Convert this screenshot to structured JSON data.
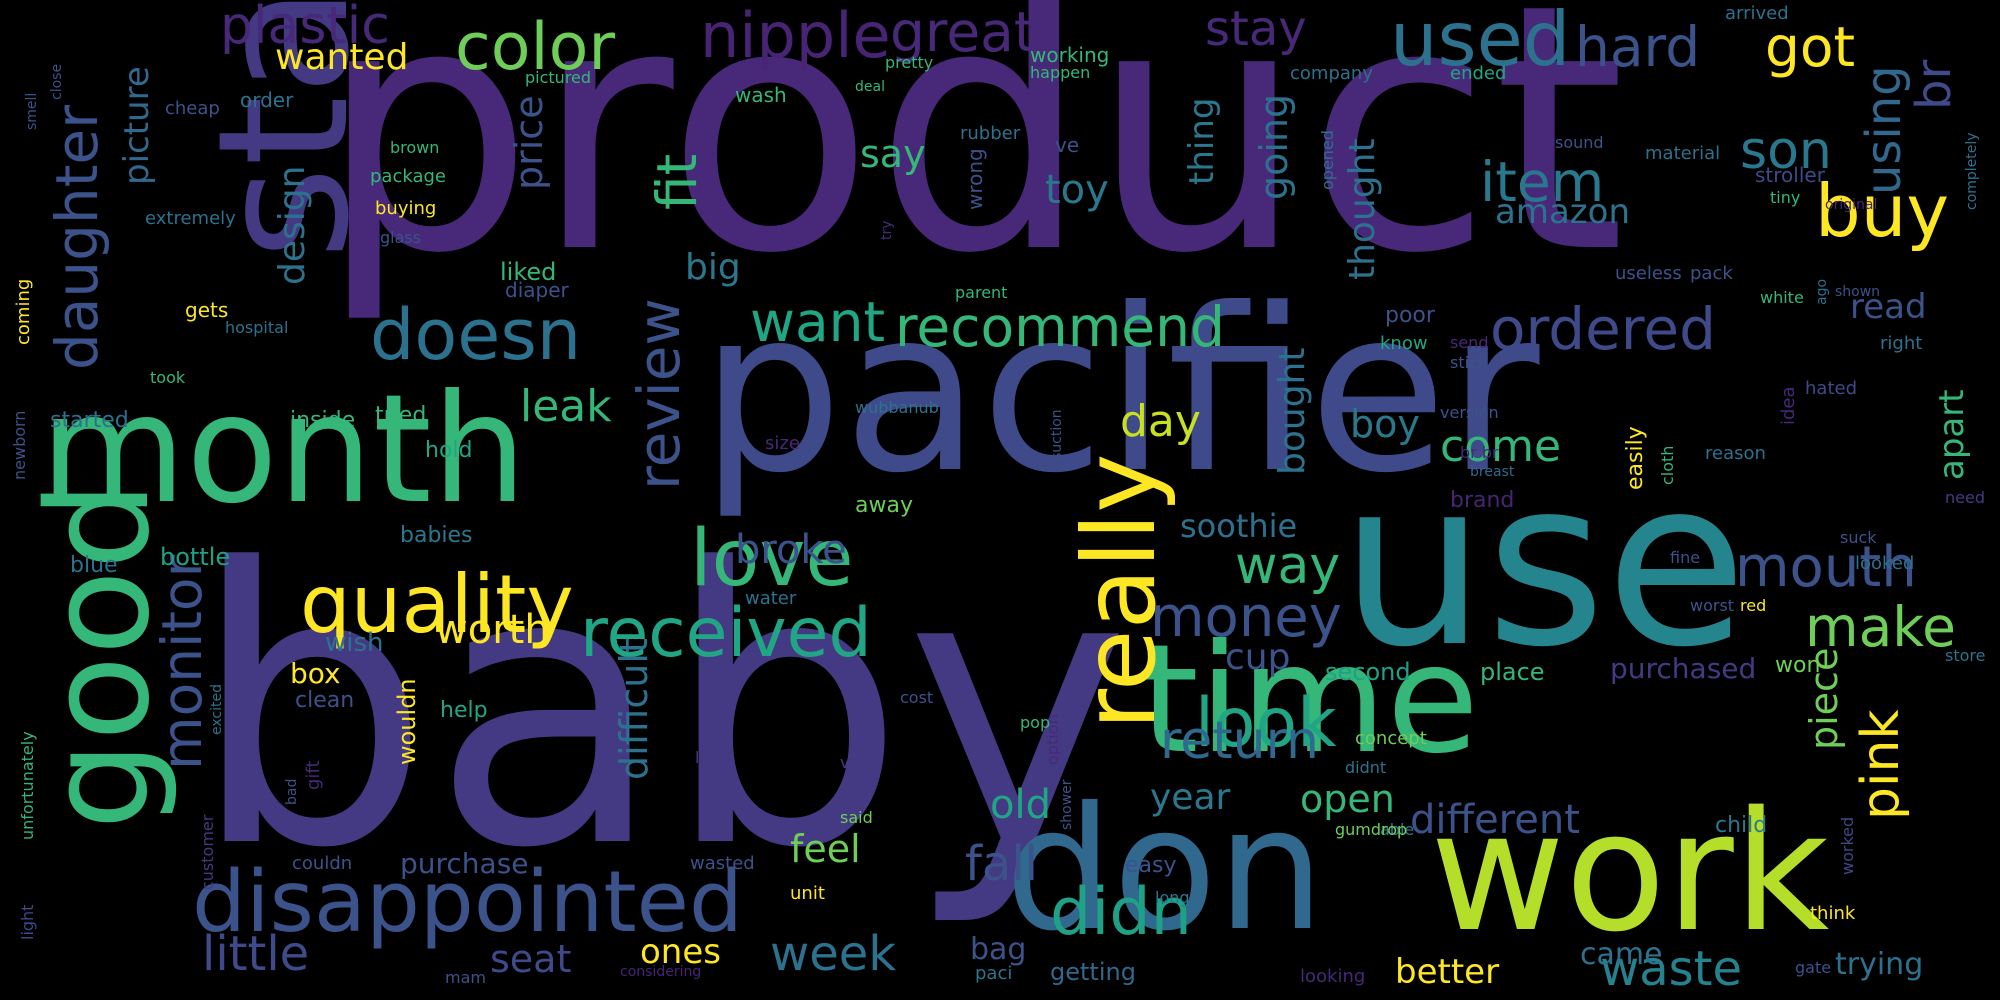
{
  "words": [
    {
      "text": "product",
      "color": "#482878"
    },
    {
      "text": "baby",
      "color": "#443a83"
    },
    {
      "text": "pacifier",
      "color": "#3e4a89"
    },
    {
      "text": "use",
      "color": "#25858e"
    },
    {
      "text": "star",
      "color": "#443a83"
    },
    {
      "text": "month",
      "color": "#35b779"
    },
    {
      "text": "good",
      "color": "#35b779"
    },
    {
      "text": "time",
      "color": "#35b779"
    },
    {
      "text": "work",
      "color": "#b5de2b"
    },
    {
      "text": "don",
      "color": "#31688e"
    },
    {
      "text": "disappointed",
      "color": "#3b528b"
    },
    {
      "text": "really",
      "color": "#fde725"
    },
    {
      "text": "quality",
      "color": "#fde725"
    },
    {
      "text": "received",
      "color": "#21a685"
    },
    {
      "text": "doesn",
      "color": "#2c728e"
    },
    {
      "text": "love",
      "color": "#35b779"
    },
    {
      "text": "color",
      "color": "#6ece58"
    },
    {
      "text": "used",
      "color": "#2c728e"
    },
    {
      "text": "nipple",
      "color": "#482475"
    },
    {
      "text": "great",
      "color": "#482878"
    },
    {
      "text": "plastic",
      "color": "#482878"
    },
    {
      "text": "look",
      "color": "#21a685"
    },
    {
      "text": "didn",
      "color": "#1fa188"
    },
    {
      "text": "buy",
      "color": "#fde725"
    },
    {
      "text": "item",
      "color": "#2a788e"
    },
    {
      "text": "recommend",
      "color": "#35b779"
    },
    {
      "text": "month",
      "color": "#35b779"
    },
    {
      "text": "daughter",
      "color": "#3b528b"
    },
    {
      "text": "monitor",
      "color": "#3b528b"
    },
    {
      "text": "review",
      "color": "#3b528b"
    },
    {
      "text": "mouth",
      "color": "#3b528b"
    },
    {
      "text": "money",
      "color": "#3b528b"
    },
    {
      "text": "return",
      "color": "#31688e"
    },
    {
      "text": "waste",
      "color": "#26828e"
    },
    {
      "text": "week",
      "color": "#2c728e"
    },
    {
      "text": "little",
      "color": "#3e4a89"
    },
    {
      "text": "ordered",
      "color": "#3e4a89"
    },
    {
      "text": "make",
      "color": "#6ece58"
    },
    {
      "text": "pink",
      "color": "#fde725"
    },
    {
      "text": "fit",
      "color": "#35b779"
    },
    {
      "text": "want",
      "color": "#21a685"
    },
    {
      "text": "way",
      "color": "#35b779"
    },
    {
      "text": "hard",
      "color": "#3b528b"
    },
    {
      "text": "got",
      "color": "#fde725"
    },
    {
      "text": "son",
      "color": "#2a788e"
    },
    {
      "text": "using",
      "color": "#31688e"
    },
    {
      "text": "br",
      "color": "#3e4a89"
    },
    {
      "text": "stay",
      "color": "#482878"
    },
    {
      "text": "wanted",
      "color": "#fde725"
    },
    {
      "text": "picture",
      "color": "#31688e"
    },
    {
      "text": "design",
      "color": "#2c728e"
    },
    {
      "text": "price",
      "color": "#3b528b"
    },
    {
      "text": "say",
      "color": "#35b779"
    },
    {
      "text": "toy",
      "color": "#2a788e"
    },
    {
      "text": "amazon",
      "color": "#2c728e"
    },
    {
      "text": "thought",
      "color": "#2c728e"
    },
    {
      "text": "thing",
      "color": "#2a788e"
    },
    {
      "text": "going",
      "color": "#2c728e"
    },
    {
      "text": "big",
      "color": "#2a788e"
    },
    {
      "text": "day",
      "color": "#c8e020"
    },
    {
      "text": "leak",
      "color": "#35b779"
    },
    {
      "text": "boy",
      "color": "#2a788e"
    },
    {
      "text": "bought",
      "color": "#2c728e"
    },
    {
      "text": "come",
      "color": "#35b779"
    },
    {
      "text": "soothie",
      "color": "#2c728e"
    },
    {
      "text": "apart",
      "color": "#35b779"
    },
    {
      "text": "read",
      "color": "#3b528b"
    },
    {
      "text": "broke",
      "color": "#3b528b"
    },
    {
      "text": "worth",
      "color": "#fde725"
    },
    {
      "text": "difficult",
      "color": "#2c728e"
    },
    {
      "text": "cup",
      "color": "#3b528b"
    },
    {
      "text": "open",
      "color": "#35b779"
    },
    {
      "text": "year",
      "color": "#2a788e"
    },
    {
      "text": "old",
      "color": "#21a685"
    },
    {
      "text": "feel",
      "color": "#6ece58"
    },
    {
      "text": "fall",
      "color": "#3b528b"
    },
    {
      "text": "different",
      "color": "#3b528b"
    },
    {
      "text": "piece",
      "color": "#6ece58"
    },
    {
      "text": "seat",
      "color": "#3e4a89"
    },
    {
      "text": "ones",
      "color": "#fde725"
    },
    {
      "text": "bag",
      "color": "#3b528b"
    },
    {
      "text": "better",
      "color": "#fde725"
    },
    {
      "text": "came",
      "color": "#2c728e"
    },
    {
      "text": "trying",
      "color": "#2c728e"
    },
    {
      "text": "purchased",
      "color": "#443a83"
    },
    {
      "text": "second",
      "color": "#1fa188"
    },
    {
      "text": "place",
      "color": "#35b779"
    },
    {
      "text": "purchase",
      "color": "#3b528b"
    },
    {
      "text": "getting",
      "color": "#31688e"
    },
    {
      "text": "box",
      "color": "#fde725"
    },
    {
      "text": "wish",
      "color": "#2c728e"
    },
    {
      "text": "clean",
      "color": "#3b528b"
    },
    {
      "text": "wouldn",
      "color": "#fde725"
    },
    {
      "text": "help",
      "color": "#21a685"
    },
    {
      "text": "bottle",
      "color": "#1fa188"
    },
    {
      "text": "babies",
      "color": "#2a788e"
    },
    {
      "text": "tried",
      "color": "#35b779"
    },
    {
      "text": "started",
      "color": "#2c728e"
    },
    {
      "text": "inside",
      "color": "#35b779"
    },
    {
      "text": "hold",
      "color": "#21a685"
    },
    {
      "text": "away",
      "color": "#6ece58"
    },
    {
      "text": "water",
      "color": "#2c728e"
    },
    {
      "text": "blue",
      "color": "#2c728e"
    },
    {
      "text": "poor",
      "color": "#3b528b"
    },
    {
      "text": "know",
      "color": "#21a685"
    },
    {
      "text": "send",
      "color": "#482878"
    },
    {
      "text": "stick",
      "color": "#3b528b"
    },
    {
      "text": "version",
      "color": "#3b528b"
    },
    {
      "text": "br br",
      "color": "#482878"
    },
    {
      "text": "breast",
      "color": "#31688e"
    },
    {
      "text": "brand",
      "color": "#482475"
    },
    {
      "text": "easily",
      "color": "#fde725"
    },
    {
      "text": "cloth",
      "color": "#35b779"
    },
    {
      "text": "reason",
      "color": "#2c728e"
    },
    {
      "text": "idea",
      "color": "#482878"
    },
    {
      "text": "hated",
      "color": "#3e4a89"
    },
    {
      "text": "right",
      "color": "#2c728e"
    },
    {
      "text": "suck",
      "color": "#3b528b"
    },
    {
      "text": "need",
      "color": "#443a83"
    },
    {
      "text": "looked",
      "color": "#2c728e"
    },
    {
      "text": "worst",
      "color": "#3b528b"
    },
    {
      "text": "red",
      "color": "#fde725"
    },
    {
      "text": "store",
      "color": "#2c728e"
    },
    {
      "text": "won",
      "color": "#6ece58"
    },
    {
      "text": "fine",
      "color": "#3b528b"
    },
    {
      "text": "child",
      "color": "#2a788e"
    },
    {
      "text": "worked",
      "color": "#3e4a89"
    },
    {
      "text": "think",
      "color": "#fde725"
    },
    {
      "text": "gate",
      "color": "#3b528b"
    },
    {
      "text": "concept",
      "color": "#6ece58"
    },
    {
      "text": "didnt",
      "color": "#2c728e"
    },
    {
      "text": "able",
      "color": "#2a788e"
    },
    {
      "text": "gumdrop",
      "color": "#6ece58"
    },
    {
      "text": "looking",
      "color": "#482878"
    },
    {
      "text": "paci",
      "color": "#2a788e"
    },
    {
      "text": "long",
      "color": "#2a788e"
    },
    {
      "text": "easy",
      "color": "#3b528b"
    },
    {
      "text": "shower",
      "color": "#3b528b"
    },
    {
      "text": "option",
      "color": "#482878"
    },
    {
      "text": "unit",
      "color": "#fde725"
    },
    {
      "text": "wasted",
      "color": "#3b528b"
    },
    {
      "text": "considering",
      "color": "#482475"
    },
    {
      "text": "mam",
      "color": "#3b528b"
    },
    {
      "text": "said",
      "color": "#6ece58"
    },
    {
      "text": "vary",
      "color": "#443a83"
    },
    {
      "text": "lint",
      "color": "#443a83"
    },
    {
      "text": "cost",
      "color": "#3b528b"
    },
    {
      "text": "pop",
      "color": "#35b779"
    },
    {
      "text": "excited",
      "color": "#2c728e"
    },
    {
      "text": "customer",
      "color": "#443a83"
    },
    {
      "text": "couldn",
      "color": "#3b528b"
    },
    {
      "text": "bad",
      "color": "#3b528b"
    },
    {
      "text": "gift",
      "color": "#482878"
    },
    {
      "text": "unfortunately",
      "color": "#35b779"
    },
    {
      "text": "light",
      "color": "#3e4a89"
    },
    {
      "text": "newborn",
      "color": "#3b528b"
    },
    {
      "text": "took",
      "color": "#35b779"
    },
    {
      "text": "coming",
      "color": "#fde725"
    },
    {
      "text": "gets",
      "color": "#fde725"
    },
    {
      "text": "hospital",
      "color": "#2c728e"
    },
    {
      "text": "extremely",
      "color": "#2c728e"
    },
    {
      "text": "liked",
      "color": "#35b779"
    },
    {
      "text": "diaper",
      "color": "#3b528b"
    },
    {
      "text": "glass",
      "color": "#3b528b"
    },
    {
      "text": "buying",
      "color": "#fde725"
    },
    {
      "text": "package",
      "color": "#35b779"
    },
    {
      "text": "brown",
      "color": "#35b779"
    },
    {
      "text": "cheap",
      "color": "#3b528b"
    },
    {
      "text": "order",
      "color": "#2c728e"
    },
    {
      "text": "pictured",
      "color": "#35b779"
    },
    {
      "text": "smell",
      "color": "#3b528b"
    },
    {
      "text": "close",
      "color": "#3b528b"
    },
    {
      "text": "wash",
      "color": "#35b779"
    },
    {
      "text": "rubber",
      "color": "#2c728e"
    },
    {
      "text": "deal",
      "color": "#35b779"
    },
    {
      "text": "pretty",
      "color": "#35b779"
    },
    {
      "text": "working",
      "color": "#35b779"
    },
    {
      "text": "happen",
      "color": "#35b779"
    },
    {
      "text": "wrong",
      "color": "#3b528b"
    },
    {
      "text": "ve",
      "color": "#3b528b"
    },
    {
      "text": "try",
      "color": "#482878"
    },
    {
      "text": "parent",
      "color": "#35b779"
    },
    {
      "text": "size",
      "color": "#482878"
    },
    {
      "text": "wubbanub",
      "color": "#2c728e"
    },
    {
      "text": "suction",
      "color": "#3b528b"
    },
    {
      "text": "company",
      "color": "#2c728e"
    },
    {
      "text": "ended",
      "color": "#21a685"
    },
    {
      "text": "opened",
      "color": "#2c728e"
    },
    {
      "text": "arrived",
      "color": "#2c728e"
    },
    {
      "text": "sound",
      "color": "#3b528b"
    },
    {
      "text": "material",
      "color": "#2c728e"
    },
    {
      "text": "stroller",
      "color": "#3e4a89"
    },
    {
      "text": "tiny",
      "color": "#35b779"
    },
    {
      "text": "original",
      "color": "#482878"
    },
    {
      "text": "completely",
      "color": "#2c728e"
    },
    {
      "text": "useless",
      "color": "#3b528b"
    },
    {
      "text": "pack",
      "color": "#3b528b"
    },
    {
      "text": "white",
      "color": "#35b779"
    },
    {
      "text": "ago",
      "color": "#2c728e"
    },
    {
      "text": "shown",
      "color": "#3b528b"
    }
  ]
}
